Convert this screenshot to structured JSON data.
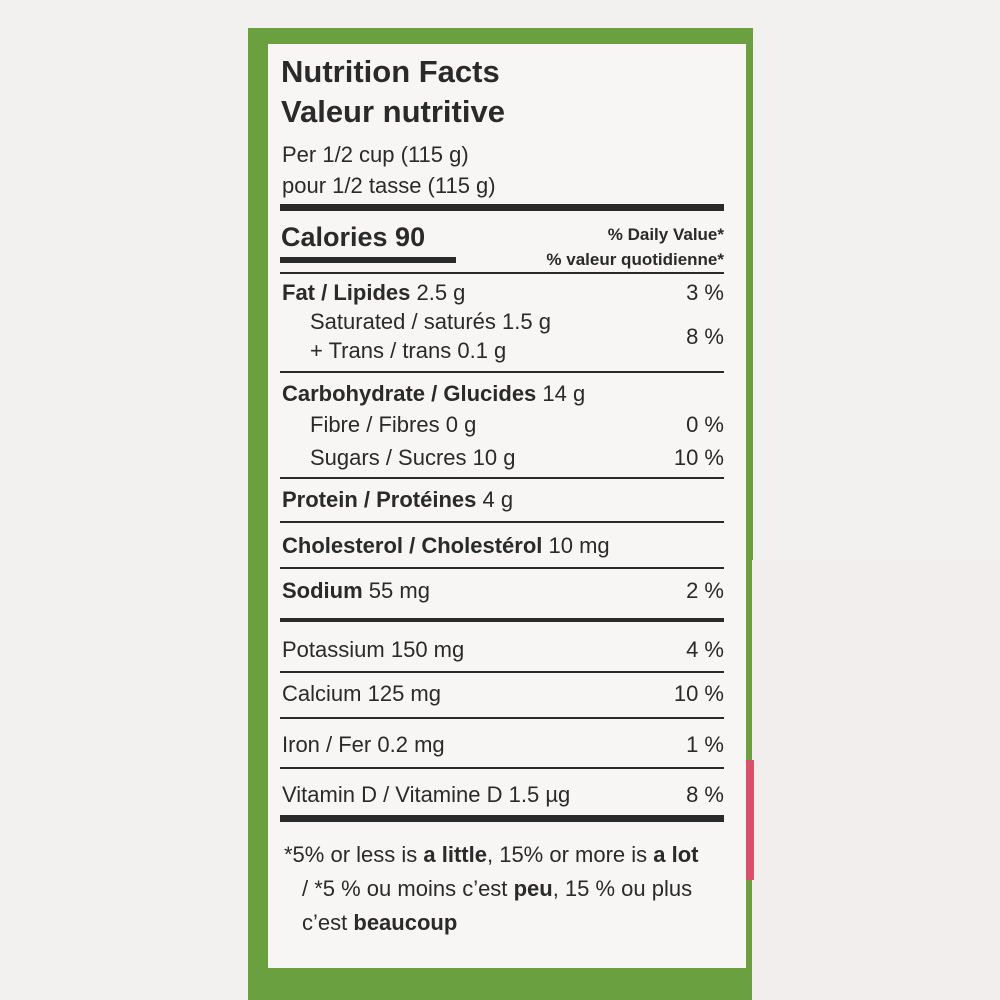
{
  "header": {
    "title_en": "Nutrition Facts",
    "title_fr": "Valeur nutritive",
    "serving_en": "Per 1/2 cup (115 g)",
    "serving_fr": "pour 1/2 tasse (115 g)"
  },
  "calories": {
    "label": "Calories 90",
    "dv_en": "% Daily Value*",
    "dv_fr": "% valeur quotidienne*"
  },
  "rows": [
    {
      "name": "Fat / Lipides",
      "amount": "2.5 g",
      "dv": "3 %"
    },
    {
      "name": "Saturated / saturés",
      "amount": "1.5 g",
      "dv": "8 %"
    },
    {
      "name": "+ Trans / trans",
      "amount": "0.1 g"
    },
    {
      "name": "Carbohydrate / Glucides",
      "amount": "14 g"
    },
    {
      "name": "Fibre / Fibres",
      "amount": "0 g",
      "dv": "0 %"
    },
    {
      "name": "Sugars / Sucres",
      "amount": "10 g",
      "dv": "10 %"
    },
    {
      "name": "Protein / Protéines",
      "amount": "4 g"
    },
    {
      "name": "Cholesterol / Cholestérol",
      "amount": "10 mg"
    },
    {
      "name": "Sodium",
      "amount": "55 mg",
      "dv": "2 %"
    },
    {
      "name": "Potassium",
      "amount": "150 mg",
      "dv": "4 %"
    },
    {
      "name": "Calcium",
      "amount": "125 mg",
      "dv": "10 %"
    },
    {
      "name": "Iron / Fer",
      "amount": "0.2 mg",
      "dv": "1 %"
    },
    {
      "name": "Vitamin D / Vitamine D",
      "amount": "1.5 µg",
      "dv": "8 %"
    }
  ],
  "footnote": [
    "*5% or less is",
    "a little",
    ", 15% or more is",
    "a lot",
    " / *5 % ou moins c’est",
    "peu",
    ", 15 % ou plus c’est",
    "beaucoup"
  ]
}
